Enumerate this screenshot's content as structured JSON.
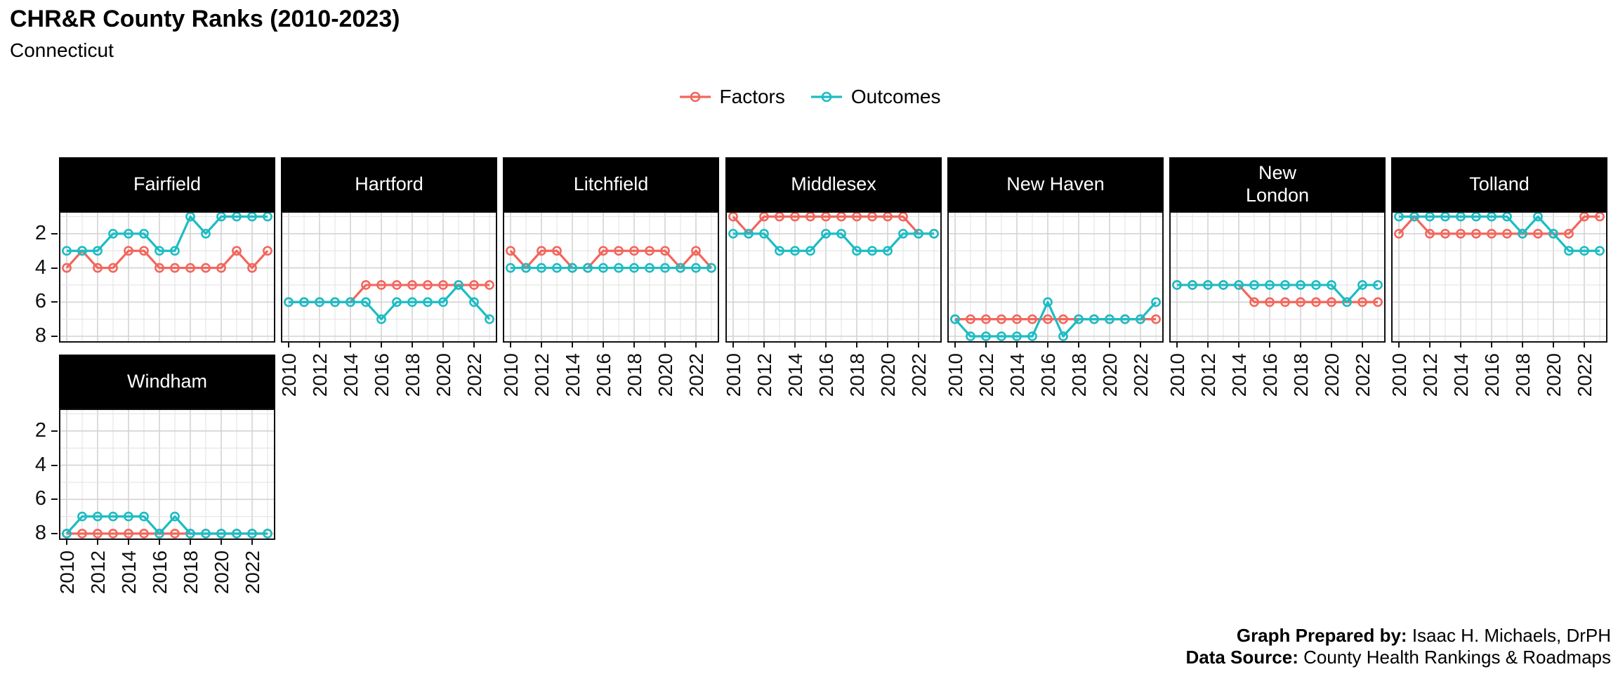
{
  "header": {
    "title": "CHR&R County Ranks (2010-2023)",
    "subtitle": "Connecticut"
  },
  "legend": {
    "items": [
      {
        "label": "Factors",
        "color": "#F2665C"
      },
      {
        "label": "Outcomes",
        "color": "#1CBCC3"
      }
    ]
  },
  "footer": {
    "prepared_by_label": "Graph Prepared by:",
    "prepared_by_value": "Isaac H. Michaels, DrPH",
    "source_label": "Data Source:",
    "source_value": "County Health Rankings & Roadmaps"
  },
  "chart_data": {
    "type": "line",
    "title": "CHR&R County Ranks (2010-2023)",
    "subtitle": "Connecticut",
    "x": [
      2010,
      2011,
      2012,
      2013,
      2014,
      2015,
      2016,
      2017,
      2018,
      2019,
      2020,
      2021,
      2022,
      2023
    ],
    "x_tick_labels": [
      "2010",
      "2012",
      "2014",
      "2016",
      "2018",
      "2020",
      "2022"
    ],
    "y_ticks": [
      2,
      4,
      6,
      8
    ],
    "y_range": [
      1,
      8
    ],
    "y_inverted": true,
    "grid": true,
    "legend_position": "top",
    "series_names": [
      "Factors",
      "Outcomes"
    ],
    "colors": {
      "Factors": "#F2665C",
      "Outcomes": "#1CBCC3"
    },
    "panels": [
      {
        "name": "Fairfield",
        "label": "Fairfield",
        "factors": [
          4,
          3,
          4,
          4,
          3,
          3,
          4,
          4,
          4,
          4,
          4,
          3,
          4,
          3
        ],
        "outcomes": [
          3,
          3,
          3,
          2,
          2,
          2,
          3,
          3,
          1,
          2,
          1,
          1,
          1,
          1
        ]
      },
      {
        "name": "Hartford",
        "label": "Hartford",
        "factors": [
          6,
          6,
          6,
          6,
          6,
          5,
          5,
          5,
          5,
          5,
          5,
          5,
          5,
          5
        ],
        "outcomes": [
          6,
          6,
          6,
          6,
          6,
          6,
          7,
          6,
          6,
          6,
          6,
          5,
          6,
          7
        ]
      },
      {
        "name": "Litchfield",
        "label": "Litchfield",
        "factors": [
          3,
          4,
          3,
          3,
          4,
          4,
          3,
          3,
          3,
          3,
          3,
          4,
          3,
          4
        ],
        "outcomes": [
          4,
          4,
          4,
          4,
          4,
          4,
          4,
          4,
          4,
          4,
          4,
          4,
          4,
          4
        ]
      },
      {
        "name": "Middlesex",
        "label": "Middlesex",
        "factors": [
          1,
          2,
          1,
          1,
          1,
          1,
          1,
          1,
          1,
          1,
          1,
          1,
          2,
          2
        ],
        "outcomes": [
          2,
          2,
          2,
          3,
          3,
          3,
          2,
          2,
          3,
          3,
          3,
          2,
          2,
          2
        ]
      },
      {
        "name": "New Haven",
        "label": "New Haven",
        "factors": [
          7,
          7,
          7,
          7,
          7,
          7,
          7,
          7,
          7,
          7,
          7,
          7,
          7,
          7
        ],
        "outcomes": [
          7,
          8,
          8,
          8,
          8,
          8,
          6,
          8,
          7,
          7,
          7,
          7,
          7,
          6
        ]
      },
      {
        "name": "New London",
        "label": "New\nLondon",
        "factors": [
          5,
          5,
          5,
          5,
          5,
          6,
          6,
          6,
          6,
          6,
          6,
          6,
          6,
          6
        ],
        "outcomes": [
          5,
          5,
          5,
          5,
          5,
          5,
          5,
          5,
          5,
          5,
          5,
          6,
          5,
          5
        ]
      },
      {
        "name": "Tolland",
        "label": "Tolland",
        "factors": [
          2,
          1,
          2,
          2,
          2,
          2,
          2,
          2,
          2,
          2,
          2,
          2,
          1,
          1
        ],
        "outcomes": [
          1,
          1,
          1,
          1,
          1,
          1,
          1,
          1,
          2,
          1,
          2,
          3,
          3,
          3
        ]
      },
      {
        "name": "Windham",
        "label": "Windham",
        "factors": [
          8,
          8,
          8,
          8,
          8,
          8,
          8,
          8,
          8,
          8,
          8,
          8,
          8,
          8
        ],
        "outcomes": [
          8,
          7,
          7,
          7,
          7,
          7,
          8,
          7,
          8,
          8,
          8,
          8,
          8,
          8
        ]
      }
    ]
  }
}
